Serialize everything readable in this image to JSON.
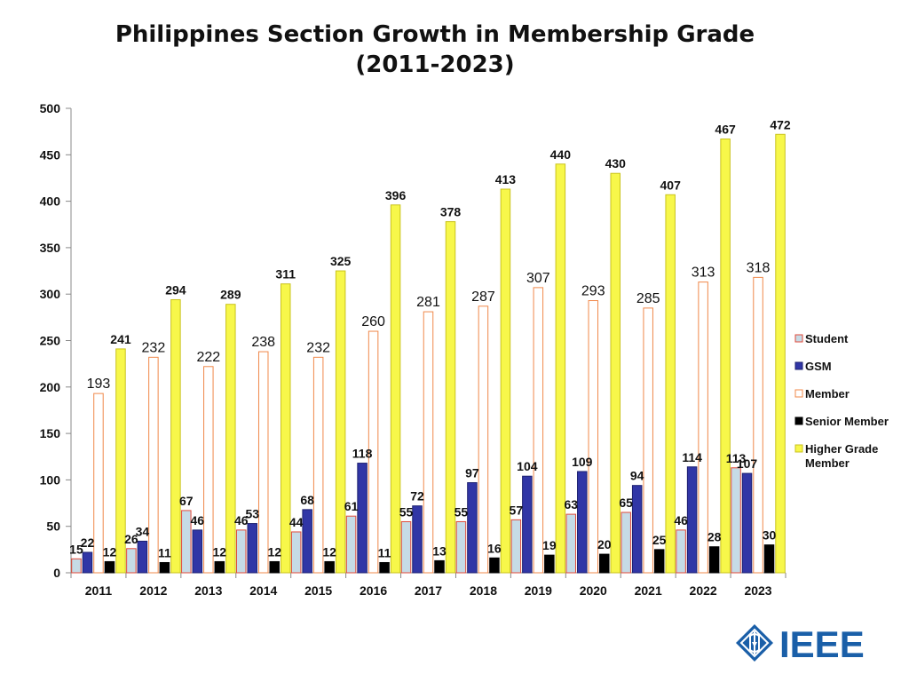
{
  "chart_data": {
    "type": "bar",
    "title_lines": [
      "Philippines Section Growth in Membership Grade",
      "(2011-2023)"
    ],
    "categories": [
      "2011",
      "2012",
      "2013",
      "2014",
      "2015",
      "2016",
      "2017",
      "2018",
      "2019",
      "2020",
      "2021",
      "2022",
      "2023"
    ],
    "ylim": [
      0,
      500
    ],
    "yticks": [
      0,
      50,
      100,
      150,
      200,
      250,
      300,
      350,
      400,
      450,
      500
    ],
    "grid": false,
    "legend_position": "right",
    "series": [
      {
        "name": "Student",
        "fill": "#c6dbe6",
        "stroke": "#e04a3a",
        "label_bold": true,
        "values": [
          15,
          26,
          67,
          46,
          44,
          61,
          55,
          55,
          57,
          63,
          65,
          46,
          113
        ]
      },
      {
        "name": "GSM",
        "fill": "#3136a6",
        "stroke": "#1d2070",
        "label_bold": true,
        "values": [
          22,
          34,
          46,
          53,
          68,
          118,
          72,
          97,
          104,
          109,
          94,
          114,
          107
        ]
      },
      {
        "name": "Member",
        "fill": "#ffffff",
        "stroke": "#f0884a",
        "label_bold": false,
        "values": [
          193,
          232,
          222,
          238,
          232,
          260,
          281,
          287,
          307,
          293,
          285,
          313,
          318
        ]
      },
      {
        "name": "Senior Member",
        "fill": "#000000",
        "stroke": "#000000",
        "label_bold": true,
        "values": [
          12,
          11,
          12,
          12,
          12,
          11,
          13,
          16,
          19,
          20,
          25,
          28,
          30
        ]
      },
      {
        "name": "Higher Grade Member",
        "fill": "#f7f74a",
        "stroke": "#c9c21c",
        "label_bold": true,
        "values": [
          241,
          294,
          289,
          311,
          325,
          396,
          378,
          413,
          440,
          430,
          407,
          467,
          472
        ]
      }
    ]
  },
  "logo": {
    "text": "IEEE",
    "color": "#1a5fa8"
  }
}
